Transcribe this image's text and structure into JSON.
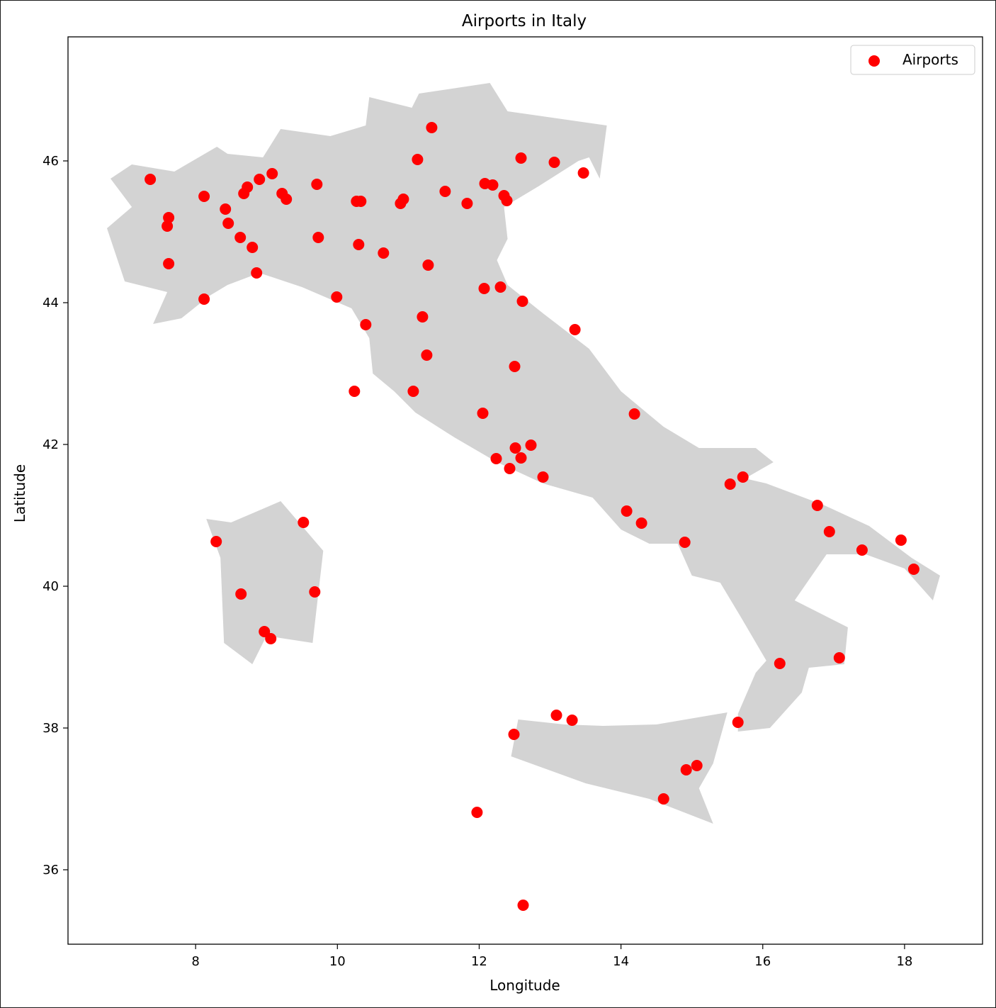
{
  "chart_data": {
    "type": "scatter",
    "title": "Airports in Italy",
    "xlabel": "Longitude",
    "ylabel": "Latitude",
    "xlim": [
      6.2,
      19.1
    ],
    "ylim": [
      34.95,
      47.75
    ],
    "xticks": [
      8,
      10,
      12,
      14,
      16,
      18
    ],
    "yticks": [
      36,
      38,
      40,
      42,
      44,
      46
    ],
    "grid": false,
    "legend": {
      "placement": "top-right",
      "entries": [
        "Airports"
      ]
    },
    "colors": {
      "points": "#ff0000",
      "land": "#d3d3d3",
      "axes": "#000000"
    },
    "land_polygons": [
      {
        "name": "mainland",
        "coords": [
          [
            7.4,
            43.7
          ],
          [
            7.8,
            43.78
          ],
          [
            8.2,
            44.1
          ],
          [
            8.45,
            44.25
          ],
          [
            8.9,
            44.42
          ],
          [
            9.5,
            44.22
          ],
          [
            10.2,
            43.92
          ],
          [
            10.45,
            43.5
          ],
          [
            10.5,
            43.0
          ],
          [
            10.8,
            42.75
          ],
          [
            11.1,
            42.45
          ],
          [
            11.65,
            42.1
          ],
          [
            12.25,
            41.75
          ],
          [
            12.9,
            41.45
          ],
          [
            13.6,
            41.25
          ],
          [
            14.0,
            40.8
          ],
          [
            14.4,
            40.6
          ],
          [
            14.8,
            40.6
          ],
          [
            15.0,
            40.15
          ],
          [
            15.4,
            40.05
          ],
          [
            15.7,
            39.55
          ],
          [
            16.05,
            38.95
          ],
          [
            15.9,
            38.78
          ],
          [
            15.65,
            38.2
          ],
          [
            15.65,
            37.95
          ],
          [
            16.1,
            38.0
          ],
          [
            16.55,
            38.5
          ],
          [
            16.65,
            38.85
          ],
          [
            17.15,
            38.9
          ],
          [
            17.2,
            39.42
          ],
          [
            16.45,
            39.8
          ],
          [
            16.9,
            40.45
          ],
          [
            17.45,
            40.45
          ],
          [
            18.0,
            40.25
          ],
          [
            18.4,
            39.8
          ],
          [
            18.5,
            40.15
          ],
          [
            18.1,
            40.4
          ],
          [
            17.5,
            40.85
          ],
          [
            16.85,
            41.15
          ],
          [
            16.05,
            41.45
          ],
          [
            15.75,
            41.52
          ],
          [
            16.15,
            41.75
          ],
          [
            15.9,
            41.95
          ],
          [
            15.1,
            41.95
          ],
          [
            14.6,
            42.25
          ],
          [
            14.0,
            42.75
          ],
          [
            13.55,
            43.35
          ],
          [
            12.9,
            43.85
          ],
          [
            12.4,
            44.25
          ],
          [
            12.25,
            44.6
          ],
          [
            12.4,
            44.9
          ],
          [
            12.35,
            45.35
          ],
          [
            12.85,
            45.65
          ],
          [
            13.4,
            46.0
          ],
          [
            13.55,
            46.05
          ],
          [
            13.7,
            45.75
          ],
          [
            13.8,
            46.5
          ],
          [
            12.4,
            46.7
          ],
          [
            12.15,
            47.1
          ],
          [
            11.15,
            46.95
          ],
          [
            11.05,
            46.75
          ],
          [
            10.45,
            46.9
          ],
          [
            10.4,
            46.5
          ],
          [
            9.9,
            46.35
          ],
          [
            9.2,
            46.45
          ],
          [
            8.95,
            46.05
          ],
          [
            8.45,
            46.1
          ],
          [
            8.3,
            46.2
          ],
          [
            7.7,
            45.85
          ],
          [
            7.1,
            45.95
          ],
          [
            6.8,
            45.75
          ],
          [
            7.1,
            45.35
          ],
          [
            6.75,
            45.05
          ],
          [
            7.0,
            44.3
          ],
          [
            7.6,
            44.15
          ]
        ]
      },
      {
        "name": "sardinia",
        "coords": [
          [
            8.15,
            40.95
          ],
          [
            8.5,
            40.9
          ],
          [
            9.2,
            41.2
          ],
          [
            9.8,
            40.5
          ],
          [
            9.65,
            39.2
          ],
          [
            9.0,
            39.3
          ],
          [
            8.8,
            38.9
          ],
          [
            8.4,
            39.2
          ],
          [
            8.35,
            40.4
          ]
        ]
      },
      {
        "name": "sicily",
        "coords": [
          [
            12.55,
            38.12
          ],
          [
            13.2,
            38.05
          ],
          [
            13.75,
            38.03
          ],
          [
            14.5,
            38.05
          ],
          [
            15.5,
            38.22
          ],
          [
            15.3,
            37.5
          ],
          [
            15.1,
            37.15
          ],
          [
            15.3,
            36.65
          ],
          [
            14.4,
            37.0
          ],
          [
            13.5,
            37.22
          ],
          [
            12.45,
            37.6
          ]
        ]
      }
    ],
    "series": [
      {
        "name": "Airports",
        "points": [
          [
            7.36,
            45.74
          ],
          [
            7.62,
            45.2
          ],
          [
            7.6,
            45.08
          ],
          [
            7.62,
            44.55
          ],
          [
            8.12,
            45.5
          ],
          [
            8.12,
            44.05
          ],
          [
            8.42,
            45.32
          ],
          [
            8.46,
            45.12
          ],
          [
            8.63,
            44.92
          ],
          [
            8.8,
            44.78
          ],
          [
            8.86,
            44.42
          ],
          [
            8.68,
            45.54
          ],
          [
            8.73,
            45.63
          ],
          [
            8.9,
            45.74
          ],
          [
            9.08,
            45.82
          ],
          [
            9.22,
            45.54
          ],
          [
            9.28,
            45.46
          ],
          [
            9.71,
            45.67
          ],
          [
            9.73,
            44.92
          ],
          [
            9.99,
            44.08
          ],
          [
            10.27,
            45.43
          ],
          [
            10.33,
            45.43
          ],
          [
            10.3,
            44.82
          ],
          [
            10.4,
            43.69
          ],
          [
            10.24,
            42.75
          ],
          [
            10.65,
            44.7
          ],
          [
            10.89,
            45.4
          ],
          [
            10.93,
            45.46
          ],
          [
            11.13,
            46.02
          ],
          [
            11.33,
            46.47
          ],
          [
            11.28,
            44.53
          ],
          [
            11.2,
            43.8
          ],
          [
            11.26,
            43.26
          ],
          [
            11.07,
            42.75
          ],
          [
            11.52,
            45.57
          ],
          [
            11.83,
            45.4
          ],
          [
            12.05,
            42.44
          ],
          [
            12.07,
            44.2
          ],
          [
            12.08,
            45.68
          ],
          [
            12.19,
            45.66
          ],
          [
            12.35,
            45.51
          ],
          [
            12.39,
            45.44
          ],
          [
            12.3,
            44.22
          ],
          [
            12.59,
            46.04
          ],
          [
            12.61,
            44.02
          ],
          [
            12.5,
            43.1
          ],
          [
            12.51,
            41.95
          ],
          [
            12.73,
            41.99
          ],
          [
            12.24,
            41.8
          ],
          [
            12.59,
            41.81
          ],
          [
            12.43,
            41.66
          ],
          [
            12.9,
            41.54
          ],
          [
            13.06,
            45.98
          ],
          [
            13.47,
            45.83
          ],
          [
            13.35,
            43.62
          ],
          [
            14.19,
            42.43
          ],
          [
            14.08,
            41.06
          ],
          [
            14.29,
            40.89
          ],
          [
            14.9,
            40.62
          ],
          [
            15.54,
            41.44
          ],
          [
            15.72,
            41.54
          ],
          [
            16.77,
            41.14
          ],
          [
            16.94,
            40.77
          ],
          [
            17.4,
            40.51
          ],
          [
            17.95,
            40.65
          ],
          [
            18.13,
            40.24
          ],
          [
            16.24,
            38.91
          ],
          [
            17.08,
            38.99
          ],
          [
            15.65,
            38.08
          ],
          [
            13.09,
            38.18
          ],
          [
            13.31,
            38.11
          ],
          [
            12.49,
            37.91
          ],
          [
            14.92,
            37.41
          ],
          [
            15.07,
            37.47
          ],
          [
            14.6,
            37.0
          ],
          [
            11.97,
            36.81
          ],
          [
            12.62,
            35.5
          ],
          [
            8.29,
            40.63
          ],
          [
            9.52,
            40.9
          ],
          [
            8.64,
            39.89
          ],
          [
            8.97,
            39.36
          ],
          [
            9.06,
            39.26
          ],
          [
            9.68,
            39.92
          ]
        ]
      }
    ]
  }
}
